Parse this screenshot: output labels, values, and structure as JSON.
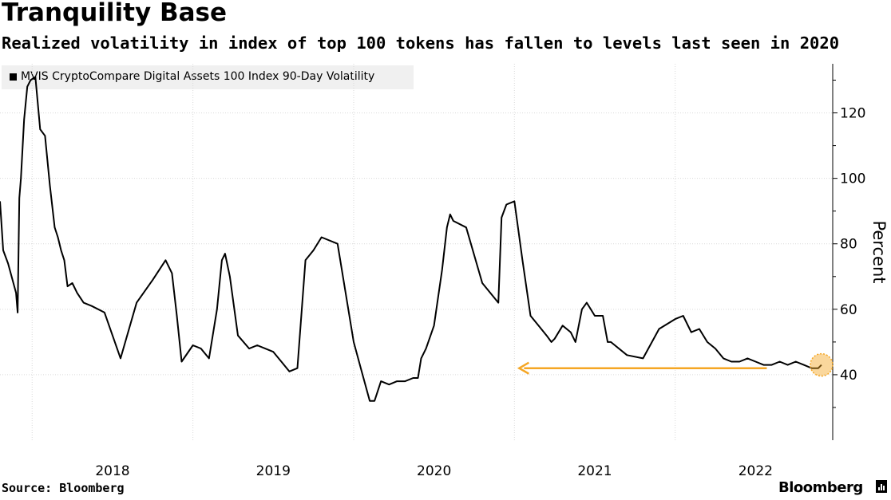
{
  "header": {
    "title": "Tranquility Base",
    "subtitle": "Realized volatility in index of top 100 tokens has fallen to levels last seen in 2020"
  },
  "footer": {
    "source": "Source: Bloomberg",
    "brand": "Bloomberg"
  },
  "colors": {
    "line": "#000000",
    "accent": "#f5a623",
    "grid": "#d9d9d9",
    "legend_bg": "#f0f0f0"
  },
  "chart_data": {
    "type": "line",
    "title": "Tranquility Base",
    "ylabel": "Percent",
    "xlabel": "",
    "ylim": [
      20,
      135
    ],
    "yticks": [
      40,
      60,
      80,
      100,
      120
    ],
    "xlim": [
      2017.3,
      2022.48
    ],
    "xticks": [
      {
        "label": "2018",
        "value": 2018.0
      },
      {
        "label": "2019",
        "value": 2019.0
      },
      {
        "label": "2020",
        "value": 2020.0
      },
      {
        "label": "2021",
        "value": 2021.0
      },
      {
        "label": "2022",
        "value": 2022.0
      }
    ],
    "legend": "MVIS CryptoCompare Digital Assets 100 Index 90-Day Volatility",
    "series": [
      {
        "name": "MVIS CryptoCompare Digital Assets 100 Index 90-Day Volatility",
        "x": [
          2017.3,
          2017.32,
          2017.35,
          2017.4,
          2017.41,
          2017.42,
          2017.43,
          2017.45,
          2017.47,
          2017.49,
          2017.52,
          2017.55,
          2017.58,
          2017.61,
          2017.64,
          2017.66,
          2017.68,
          2017.7,
          2017.72,
          2017.75,
          2017.78,
          2017.82,
          2017.87,
          2017.95,
          2018.05,
          2018.15,
          2018.25,
          2018.33,
          2018.37,
          2018.4,
          2018.43,
          2018.5,
          2018.55,
          2018.6,
          2018.65,
          2018.68,
          2018.7,
          2018.73,
          2018.78,
          2018.85,
          2018.9,
          2018.95,
          2019.0,
          2019.05,
          2019.1,
          2019.15,
          2019.2,
          2019.25,
          2019.3,
          2019.4,
          2019.5,
          2019.55,
          2019.6,
          2019.63,
          2019.67,
          2019.72,
          2019.77,
          2019.82,
          2019.87,
          2019.9,
          2019.92,
          2019.95,
          2020.0,
          2020.05,
          2020.08,
          2020.1,
          2020.12,
          2020.2,
          2020.3,
          2020.4,
          2020.42,
          2020.45,
          2020.5,
          2020.55,
          2020.6,
          2020.65,
          2020.7,
          2020.73,
          2020.75,
          2020.8,
          2020.85,
          2020.88,
          2020.92,
          2020.95,
          2021.0,
          2021.05,
          2021.08,
          2021.1,
          2021.2,
          2021.3,
          2021.4,
          2021.5,
          2021.55,
          2021.6,
          2021.65,
          2021.7,
          2021.75,
          2021.8,
          2021.85,
          2021.9,
          2021.95,
          2022.0,
          2022.05,
          2022.1,
          2022.15,
          2022.2,
          2022.25,
          2022.3,
          2022.35,
          2022.39,
          2022.41
        ],
        "values": [
          93,
          78,
          74,
          65,
          59,
          94,
          100,
          118,
          128,
          130,
          131,
          115,
          113,
          98,
          85,
          82,
          78,
          75,
          67,
          68,
          65,
          62,
          61,
          59,
          45,
          62,
          69,
          75,
          71,
          58,
          44,
          49,
          48,
          45,
          60,
          75,
          77,
          70,
          52,
          48,
          49,
          48,
          47,
          44,
          41,
          42,
          75,
          78,
          82,
          80,
          50,
          41,
          32,
          32,
          38,
          37,
          38,
          38,
          39,
          39,
          45,
          48,
          55,
          72,
          85,
          89,
          87,
          85,
          68,
          62,
          88,
          92,
          93,
          75,
          58,
          55,
          52,
          50,
          51,
          55,
          53,
          50,
          60,
          62,
          58,
          58,
          50,
          50,
          46,
          45,
          54,
          57,
          58,
          53,
          54,
          50,
          48,
          45,
          44,
          44,
          45,
          44,
          43,
          43,
          44,
          43,
          44,
          43,
          42,
          42,
          43
        ]
      }
    ],
    "annotation": {
      "type": "arrow",
      "from": {
        "x": 2022.07,
        "y": 42
      },
      "to": {
        "x": 2020.53,
        "y": 42
      },
      "highlight_point": {
        "x": 2022.41,
        "y": 43
      }
    }
  }
}
